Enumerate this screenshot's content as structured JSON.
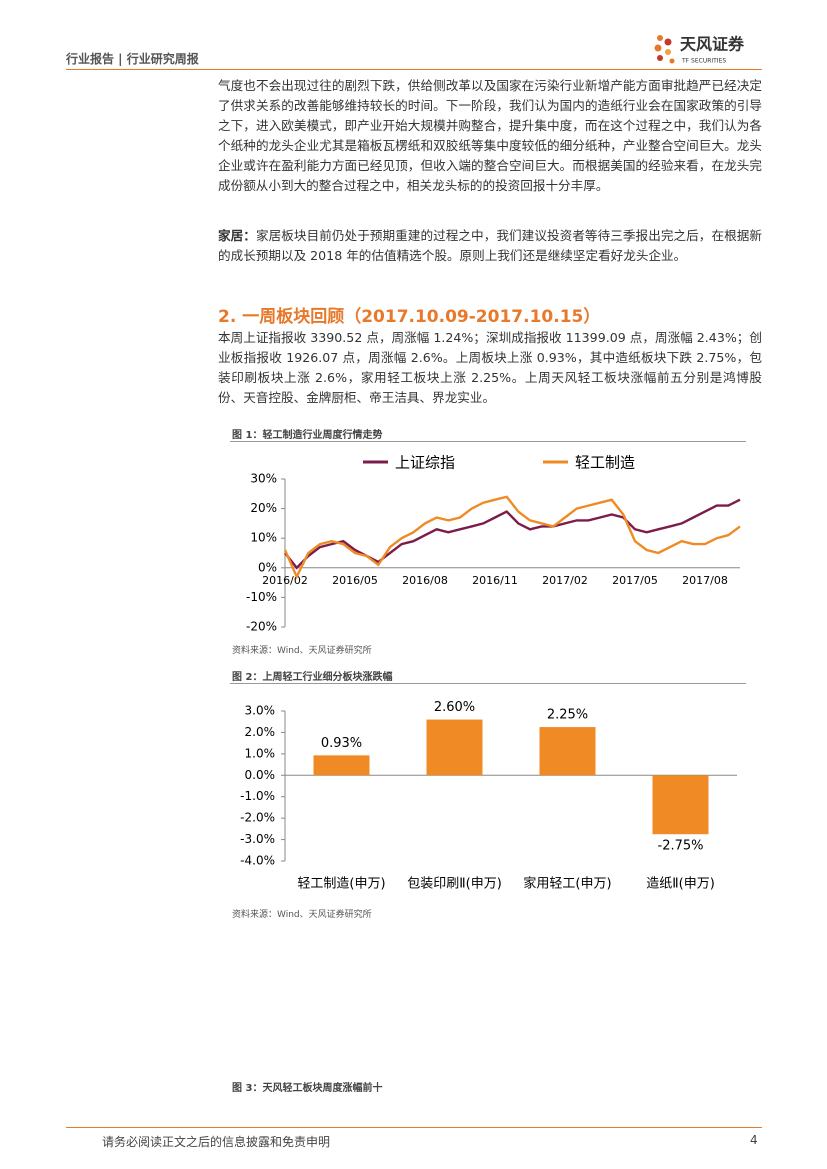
{
  "header": {
    "left": "行业报告 | 行业研究周报",
    "logo_cn": "天风证券",
    "logo_en": "TF SECURITIES"
  },
  "paragraphs": [
    {
      "text": "气度也不会出现过往的剧烈下跌，供给侧改革以及国家在污染行业新增产能方面审批趋严已经决定了供求关系的改善能够维持较长的时间。下一阶段，我们认为国内的造纸行业会在国家政策的引导之下，进入欧美模式，即产业开始大规模并购整合，提升集中度，而在这个过程之中，我们认为各个纸种的龙头企业尤其是箱板瓦楞纸和双胶纸等集中度较低的细分纸种，产业整合空间巨大。龙头企业或许在盈利能力方面已经见顶，但收入端的整合空间巨大。而根据美国的经验来看，在龙头完成份额从小到大的整合过程之中，相关龙头标的的投资回报十分丰厚。"
    },
    {
      "lead": "家居：",
      "text": "家居板块目前仍处于预期重建的过程之中，我们建议投资者等待三季报出完之后，在根据新的成长预期以及 2018 年的估值精选个股。原则上我们还是继续坚定看好龙头企业。"
    }
  ],
  "section_heading": "2. 一周板块回顾（2017.10.09-2017.10.15）",
  "summary": "本周上证指报收 3390.52 点，周涨幅 1.24%；深圳成指报收 11399.09 点，周涨幅 2.43%；创业板指报收 1926.07 点，周涨幅 2.6%。上周板块上涨 0.93%，其中造纸板块下跌 2.75%，包装印刷板块上涨 2.6%，家用轻工板块上涨 2.25%。上周天风轻工板块涨幅前五分别是鸿博股份、天音控股、金牌厨柜、帝王洁具、界龙实业。",
  "figures": [
    {
      "caption": "图 1：轻工制造行业周度行情走势",
      "source": "资料来源：Wind、天风证券研究所"
    },
    {
      "caption": "图 2：上周轻工行业细分板块涨跌幅",
      "source": "资料来源：Wind、天风证券研究所"
    },
    {
      "caption": "图 3：天风轻工板块周度涨幅前十"
    }
  ],
  "footer": {
    "disclaimer": "请务必阅读正文之后的信息披露和免责申明",
    "page": "4"
  },
  "chart_data": [
    {
      "type": "line",
      "categories": [
        "2016/02",
        null,
        null,
        null,
        null,
        null,
        "2016/05",
        null,
        null,
        null,
        null,
        null,
        "2016/08",
        null,
        null,
        null,
        null,
        null,
        "2016/11",
        null,
        null,
        null,
        null,
        null,
        "2017/02",
        null,
        null,
        null,
        null,
        null,
        "2017/05",
        null,
        null,
        null,
        null,
        null,
        "2017/08",
        null,
        null,
        null
      ],
      "series": [
        {
          "name": "上证综指",
          "color": "#7b1c4b",
          "values": [
            5,
            0,
            4,
            7,
            8,
            9,
            6,
            4,
            2,
            5,
            8,
            9,
            11,
            13,
            12,
            13,
            14,
            15,
            17,
            19,
            15,
            13,
            14,
            14,
            15,
            16,
            16,
            17,
            18,
            17,
            13,
            12,
            13,
            14,
            15,
            17,
            19,
            21,
            21,
            23
          ]
        },
        {
          "name": "轻工制造",
          "color": "#f08a24",
          "values": [
            6,
            -3,
            5,
            8,
            9,
            8,
            5,
            4,
            1,
            7,
            10,
            12,
            15,
            17,
            16,
            17,
            20,
            22,
            23,
            24,
            19,
            16,
            15,
            14,
            17,
            20,
            21,
            22,
            23,
            18,
            9,
            6,
            5,
            7,
            9,
            8,
            8,
            10,
            11,
            14
          ]
        }
      ],
      "ylim": [
        -20,
        30
      ],
      "yticks": [
        {
          "value": -20,
          "label": "-20%"
        },
        {
          "value": -10,
          "label": "-10%"
        },
        {
          "value": 0,
          "label": "0%"
        },
        {
          "value": 10,
          "label": "10%"
        },
        {
          "value": 20,
          "label": "20%"
        },
        {
          "value": 30,
          "label": "30%"
        }
      ],
      "grid": false
    },
    {
      "type": "bar",
      "categories": [
        "轻工制造(申万)",
        "包装印刷Ⅱ(申万)",
        "家用轻工(申万)",
        "造纸Ⅱ(申万)"
      ],
      "values": [
        0.93,
        2.6,
        2.25,
        -2.75
      ],
      "value_labels": [
        "0.93%",
        "2.60%",
        "2.25%",
        "-2.75%"
      ],
      "color": "#f08a24",
      "ylim": [
        -4,
        3
      ],
      "yticks": [
        {
          "value": -4,
          "label": "-4.0%"
        },
        {
          "value": -3,
          "label": "-3.0%"
        },
        {
          "value": -2,
          "label": "-2.0%"
        },
        {
          "value": -1,
          "label": "-1.0%"
        },
        {
          "value": 0,
          "label": "0.0%"
        },
        {
          "value": 1,
          "label": "1.0%"
        },
        {
          "value": 2,
          "label": "2.0%"
        },
        {
          "value": 3,
          "label": "3.0%"
        }
      ],
      "grid": false
    }
  ]
}
